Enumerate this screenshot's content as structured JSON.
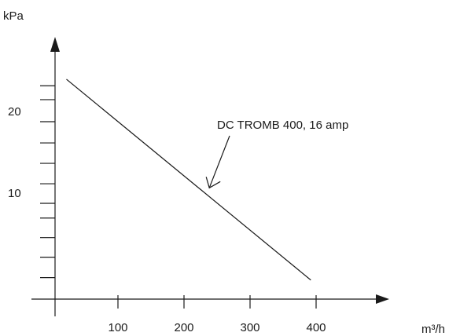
{
  "chart_data": {
    "type": "line",
    "title": "",
    "xlabel": "m³/h",
    "ylabel": "kPa",
    "xlim": [
      0,
      500
    ],
    "ylim": [
      -1,
      28
    ],
    "grid": false,
    "x_ticks": [
      100,
      200,
      300,
      400
    ],
    "x_tick_labels": [
      "100",
      "200",
      "300",
      "400"
    ],
    "y_ticks": [
      0.9,
      3.4,
      5.8,
      8.2,
      10,
      12.4,
      14.9,
      17.4,
      20,
      22.7,
      24.4
    ],
    "y_tick_labels": [
      {
        "value": 10,
        "label": "10"
      },
      {
        "value": 20,
        "label": "20"
      }
    ],
    "series": [
      {
        "name": "DC TROMB 400, 16 amp",
        "x": [
          22,
          392
        ],
        "y": [
          25.2,
          0.6
        ]
      }
    ],
    "annotations": [
      {
        "text": "DC TROMB 400, 16 amp",
        "points_to": {
          "x": 230,
          "y": 11.7
        }
      }
    ]
  }
}
